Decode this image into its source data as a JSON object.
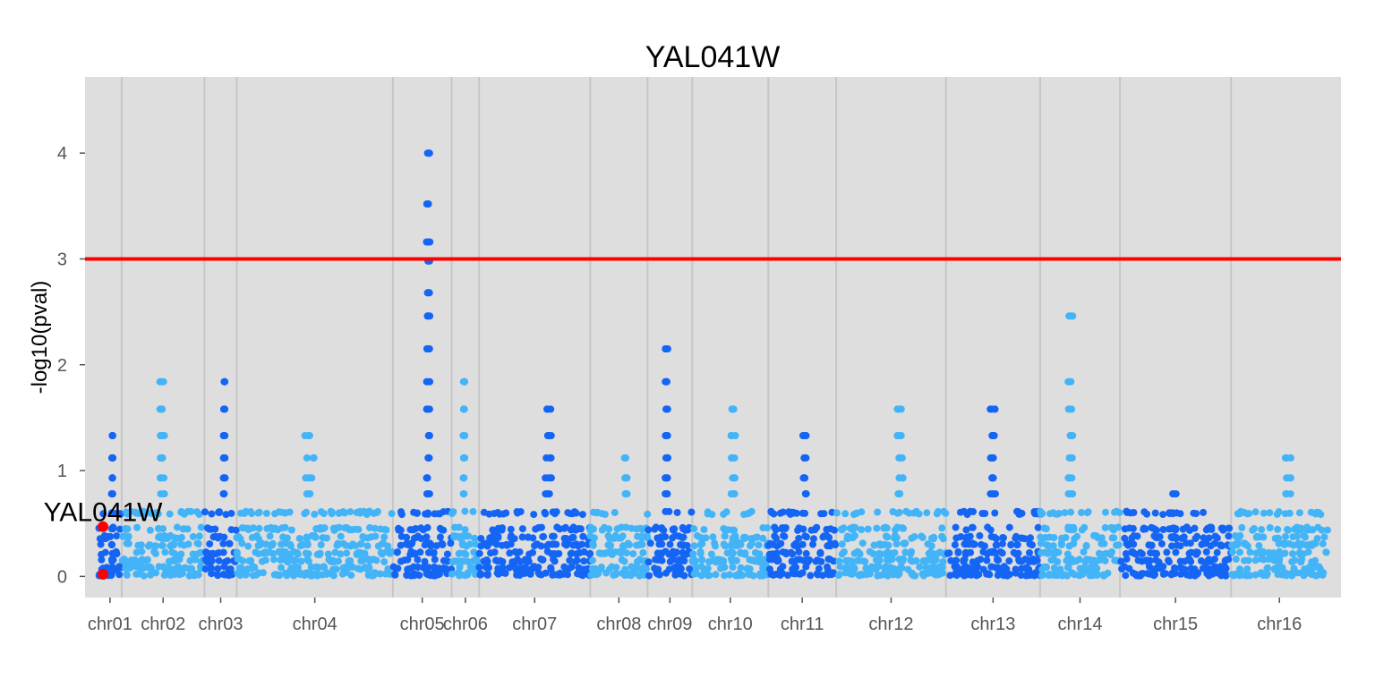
{
  "chart_data": {
    "type": "scatter",
    "title": "YAL041W",
    "xlabel": "",
    "ylabel": "-log10(pval)",
    "ylim": [
      -0.2,
      4.72
    ],
    "yticks": [
      "0",
      "1",
      "2",
      "3",
      "4"
    ],
    "threshold": 3,
    "grid": true,
    "legend": "none",
    "colors": {
      "panel": "#DEDEDE",
      "grid": "#C6C6C6",
      "dark": "#1565F5",
      "light": "#43B4F7",
      "highlight": "#FF0000",
      "threshold": "#FF0000"
    },
    "chromosomes": [
      {
        "name": "chr01",
        "start": 0,
        "end": 230
      },
      {
        "name": "chr02",
        "start": 230,
        "end": 1043
      },
      {
        "name": "chr03",
        "start": 1043,
        "end": 1360
      },
      {
        "name": "chr04",
        "start": 1360,
        "end": 2892
      },
      {
        "name": "chr05",
        "start": 2892,
        "end": 3469
      },
      {
        "name": "chr06",
        "start": 3469,
        "end": 3739
      },
      {
        "name": "chr07",
        "start": 3739,
        "end": 4830
      },
      {
        "name": "chr08",
        "start": 4830,
        "end": 5393
      },
      {
        "name": "chr09",
        "start": 5393,
        "end": 5832
      },
      {
        "name": "chr10",
        "start": 5832,
        "end": 6578
      },
      {
        "name": "chr11",
        "start": 6578,
        "end": 7245
      },
      {
        "name": "chr12",
        "start": 7245,
        "end": 8323
      },
      {
        "name": "chr13",
        "start": 8323,
        "end": 9247
      },
      {
        "name": "chr14",
        "start": 9247,
        "end": 10031
      },
      {
        "name": "chr15",
        "start": 10031,
        "end": 11122
      },
      {
        "name": "chr16",
        "start": 11122,
        "end": 12071
      }
    ],
    "peaks": [
      {
        "chr": "chr01",
        "values": [
          1.33,
          1.12,
          0.93,
          0.78,
          0.6,
          0.45,
          0.3,
          0.16,
          0.05
        ]
      },
      {
        "chr": "chr02",
        "values": [
          1.84,
          1.58,
          1.33,
          1.12,
          0.93,
          0.78
        ]
      },
      {
        "chr": "chr03",
        "values": [
          1.84,
          1.58,
          1.33,
          1.12,
          0.93,
          0.78
        ]
      },
      {
        "chr": "chr04",
        "values": [
          1.12,
          0.93,
          0.78,
          1.33
        ]
      },
      {
        "chr": "chr05",
        "values": [
          4.0,
          3.52,
          3.16,
          2.98,
          2.68,
          2.46,
          2.15,
          1.84,
          1.58,
          1.33,
          1.12,
          0.93,
          0.78
        ]
      },
      {
        "chr": "chr06",
        "values": [
          1.84,
          1.58,
          1.33,
          1.12,
          0.93,
          0.78
        ]
      },
      {
        "chr": "chr07",
        "values": [
          1.58,
          1.33,
          1.12,
          0.93,
          0.78
        ]
      },
      {
        "chr": "chr08",
        "values": [
          1.12,
          0.93,
          0.78
        ]
      },
      {
        "chr": "chr09",
        "values": [
          2.15,
          1.84,
          1.58,
          1.33,
          1.12,
          0.93,
          0.78
        ]
      },
      {
        "chr": "chr10",
        "values": [
          1.58,
          1.33,
          1.12,
          0.93,
          0.78
        ]
      },
      {
        "chr": "chr11",
        "values": [
          1.33,
          1.12,
          0.93,
          0.78
        ]
      },
      {
        "chr": "chr12",
        "values": [
          1.58,
          1.33,
          1.12,
          0.93,
          0.78
        ]
      },
      {
        "chr": "chr13",
        "values": [
          1.58,
          1.33,
          1.12,
          0.93,
          0.78
        ]
      },
      {
        "chr": "chr14",
        "values": [
          2.46,
          1.84,
          1.58,
          1.33,
          1.12,
          0.93,
          0.78
        ]
      },
      {
        "chr": "chr15",
        "values": [
          0.78,
          0.6,
          0.45
        ]
      },
      {
        "chr": "chr16",
        "values": [
          1.12,
          0.93,
          0.78
        ]
      }
    ],
    "annotations": [
      {
        "label": "YAL041W",
        "chr": "chr01",
        "value": 0.47,
        "color": "#FF0000"
      },
      {
        "label": "",
        "chr": "chr01",
        "value": 0.02,
        "color": "#FF0000"
      }
    ]
  }
}
